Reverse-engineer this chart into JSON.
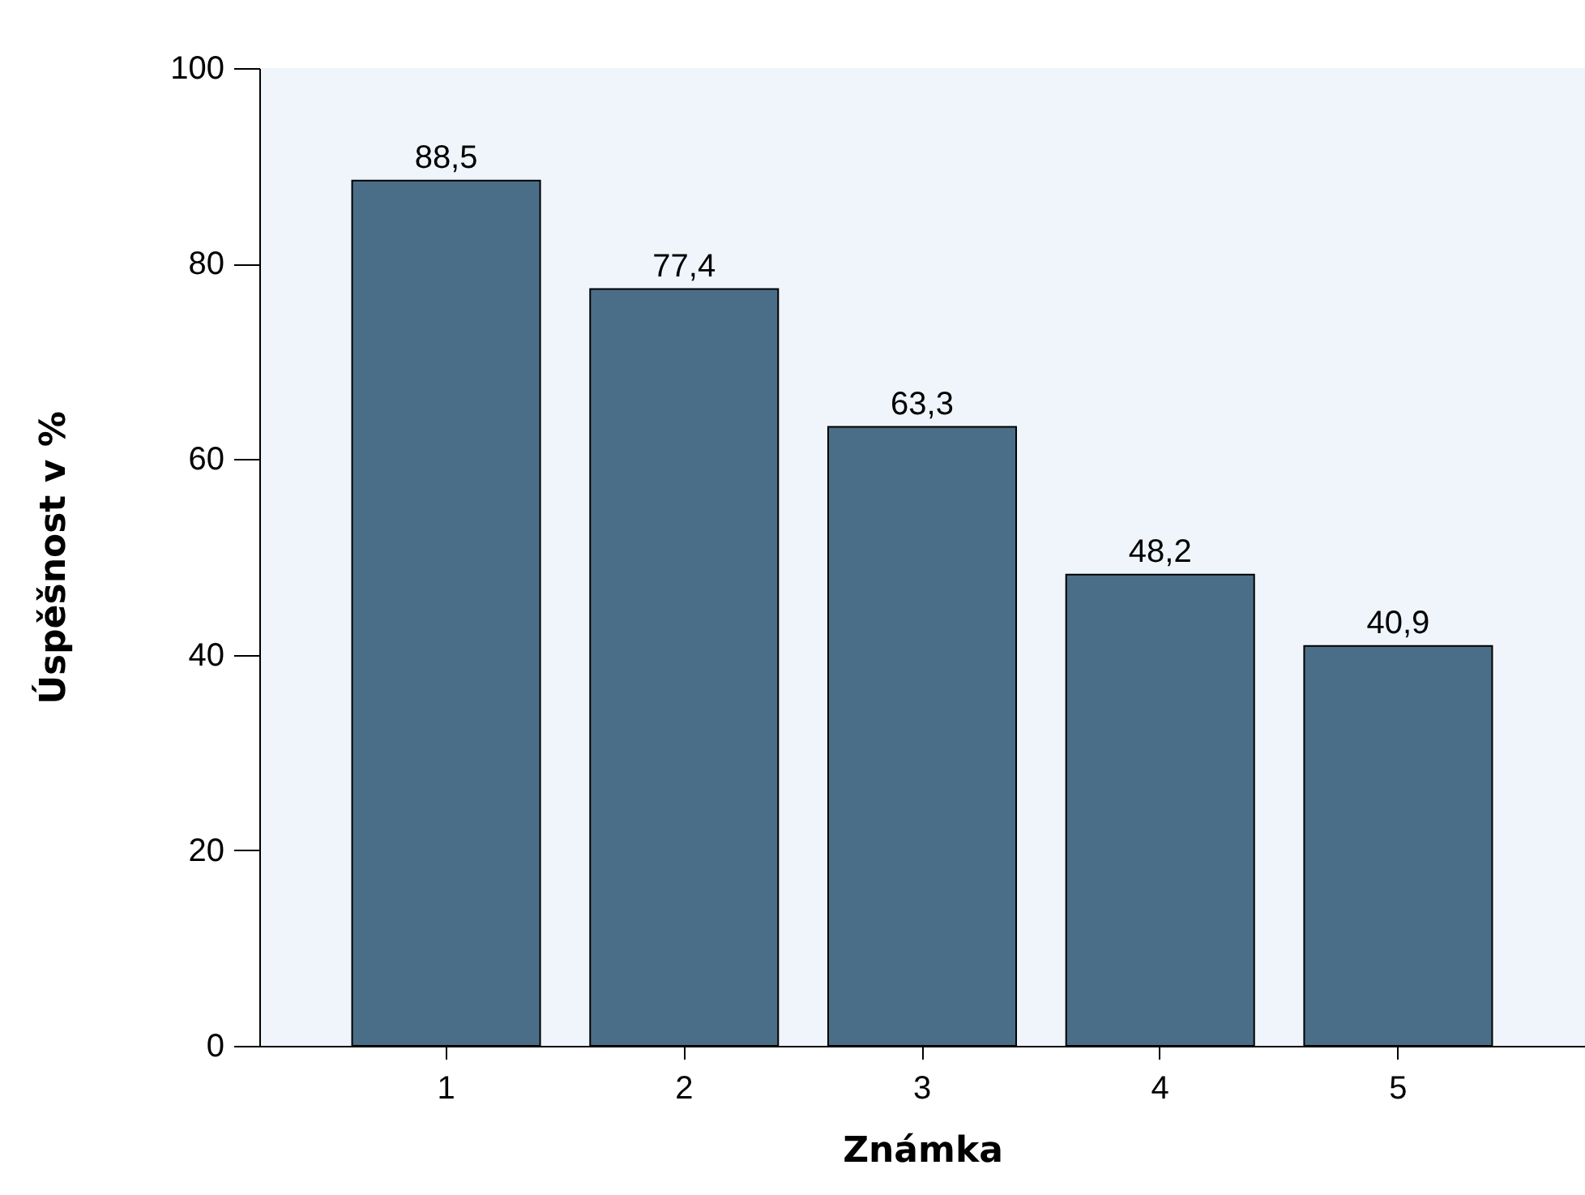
{
  "chart_data": {
    "type": "bar",
    "categories": [
      "1",
      "2",
      "3",
      "4",
      "5"
    ],
    "values": [
      88.5,
      77.4,
      63.3,
      48.2,
      40.9
    ],
    "color": "#4a6e87",
    "xlabel": "Známka",
    "ylabel": "Úspěšnost v %",
    "ylim": [
      0,
      100
    ],
    "yticks": [
      0,
      20,
      40,
      60,
      80,
      100
    ],
    "value_labels": [
      "88,5",
      "77,4",
      "63,3",
      "48,2",
      "40,9"
    ]
  }
}
